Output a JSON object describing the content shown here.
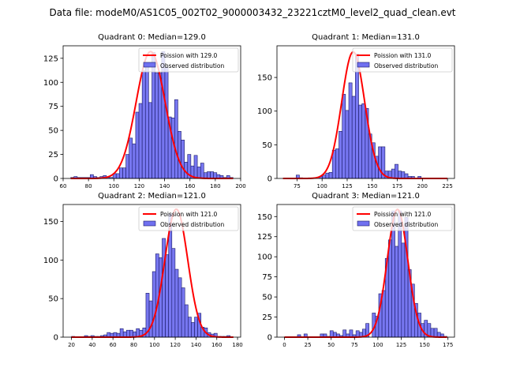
{
  "suptitle": "Data file: modeM0/AS1C05_002T02_9000003432_23221cztM0_level2_quad_clean.evt",
  "colors": {
    "bar_fill": "#7070f0",
    "bar_edge": "#1a1a66",
    "poisson_line": "#ff0000"
  },
  "legend": {
    "observed_label": "Observed distribution"
  },
  "chart_data": [
    {
      "type": "bar",
      "title": "Quadrant 0: Median=129.0",
      "poisson_label": "Poission with 129.0",
      "median": 129.0,
      "xlim": [
        60,
        200
      ],
      "ylim": [
        0,
        138
      ],
      "xticks": [
        60,
        80,
        100,
        120,
        140,
        160,
        180,
        200
      ],
      "yticks": [
        0,
        25,
        50,
        75,
        100,
        125
      ],
      "bin_start": 66,
      "bin_width": 2.56,
      "values": [
        1,
        2,
        1,
        1,
        1,
        1,
        4,
        2,
        1,
        2,
        3,
        1,
        1,
        5,
        5,
        11,
        11,
        25,
        42,
        36,
        69,
        78,
        112,
        118,
        79,
        131,
        110,
        110,
        132,
        116,
        64,
        63,
        82,
        49,
        40,
        17,
        25,
        13,
        24,
        12,
        16,
        6,
        7,
        7,
        6,
        4,
        3,
        1,
        3,
        1
      ],
      "poisson_peak": 132
    },
    {
      "type": "bar",
      "title": "Quadrant 1: Median=131.0",
      "poisson_label": "Poission with 131.0",
      "median": 131.0,
      "xlim": [
        55,
        232
      ],
      "ylim": [
        0,
        197
      ],
      "xticks": [
        75,
        100,
        125,
        150,
        175,
        200,
        225
      ],
      "yticks": [
        0,
        50,
        100,
        150
      ],
      "bin_start": 61,
      "bin_width": 3.28,
      "values": [
        0,
        0,
        0,
        0,
        5,
        1,
        0,
        0,
        0,
        0,
        0,
        3,
        5,
        8,
        9,
        42,
        44,
        70,
        125,
        101,
        142,
        122,
        185,
        109,
        111,
        104,
        66,
        53,
        33,
        47,
        47,
        11,
        11,
        14,
        21,
        11,
        10,
        7,
        3,
        3,
        0,
        3,
        0,
        0,
        0,
        0,
        0,
        0,
        0,
        0
      ],
      "poisson_peak": 188
    },
    {
      "type": "bar",
      "title": "Quadrant 2: Median=121.0",
      "poisson_label": "Poission with 121.0",
      "median": 121.0,
      "xlim": [
        12,
        183
      ],
      "ylim": [
        0,
        172
      ],
      "xticks": [
        20,
        40,
        60,
        80,
        100,
        120,
        140,
        160,
        180
      ],
      "yticks": [
        0,
        50,
        100,
        150
      ],
      "bin_start": 20,
      "bin_width": 3.12,
      "values": [
        1,
        0,
        0,
        0,
        2,
        1,
        2,
        1,
        1,
        2,
        3,
        6,
        5,
        6,
        5,
        11,
        7,
        9,
        9,
        7,
        11,
        9,
        12,
        57,
        47,
        85,
        108,
        103,
        128,
        107,
        160,
        115,
        88,
        77,
        64,
        42,
        26,
        19,
        26,
        31,
        13,
        12,
        6,
        4,
        5,
        1,
        1,
        1,
        2,
        0
      ],
      "poisson_peak": 166
    },
    {
      "type": "bar",
      "title": "Quadrant 3: Median=121.0",
      "poisson_label": "Poission with 121.0",
      "median": 121.0,
      "xlim": [
        -8,
        182
      ],
      "ylim": [
        0,
        165
      ],
      "xticks": [
        0,
        25,
        50,
        75,
        100,
        125,
        150,
        175
      ],
      "yticks": [
        0,
        25,
        50,
        75,
        100,
        125,
        150
      ],
      "bin_start": 0,
      "bin_width": 3.48,
      "values": [
        0,
        0,
        0,
        0,
        3,
        0,
        4,
        0,
        0,
        0,
        0,
        4,
        4,
        1,
        8,
        6,
        4,
        2,
        9,
        4,
        9,
        3,
        8,
        6,
        10,
        17,
        0,
        30,
        26,
        54,
        58,
        98,
        121,
        157,
        113,
        157,
        117,
        149,
        84,
        66,
        42,
        30,
        17,
        21,
        17,
        11,
        11,
        6,
        4,
        1
      ],
      "poisson_peak": 159
    }
  ]
}
